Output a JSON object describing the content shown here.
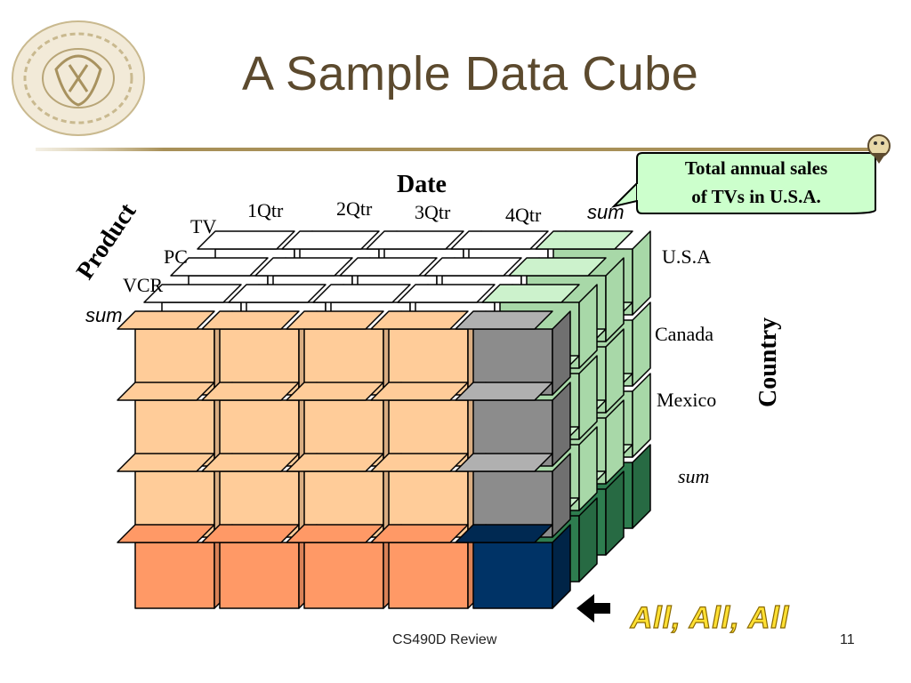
{
  "slide": {
    "title": "A Sample Data Cube",
    "footer": "CS490D Review",
    "page_number": "11"
  },
  "diagram": {
    "date_label": "Date",
    "quarters": [
      "1Qtr",
      "2Qtr",
      "3Qtr",
      "4Qtr",
      "sum"
    ],
    "product_label": "Product",
    "products": [
      "TV",
      "PC",
      "VCR",
      "sum"
    ],
    "country_label": "Country",
    "countries": [
      "U.S.A",
      "Canada",
      "Mexico",
      "sum"
    ],
    "callout": {
      "line1": "Total annual sales",
      "line2": "of  TVs in U.S.A."
    },
    "all_label": "All, All, All"
  },
  "colors": {
    "title": "#5c4a2e",
    "front_light": "#ffcc99",
    "front_sum_row": "#ff9966",
    "date_sum_gray": "#8c8c8c",
    "grand_total_navy": "#003366",
    "side_green_light": "#a8d8a8",
    "side_green_dark": "#2e7d4f",
    "callout_fill": "#ccffcc",
    "all_text_yellow": "#ffe033"
  }
}
